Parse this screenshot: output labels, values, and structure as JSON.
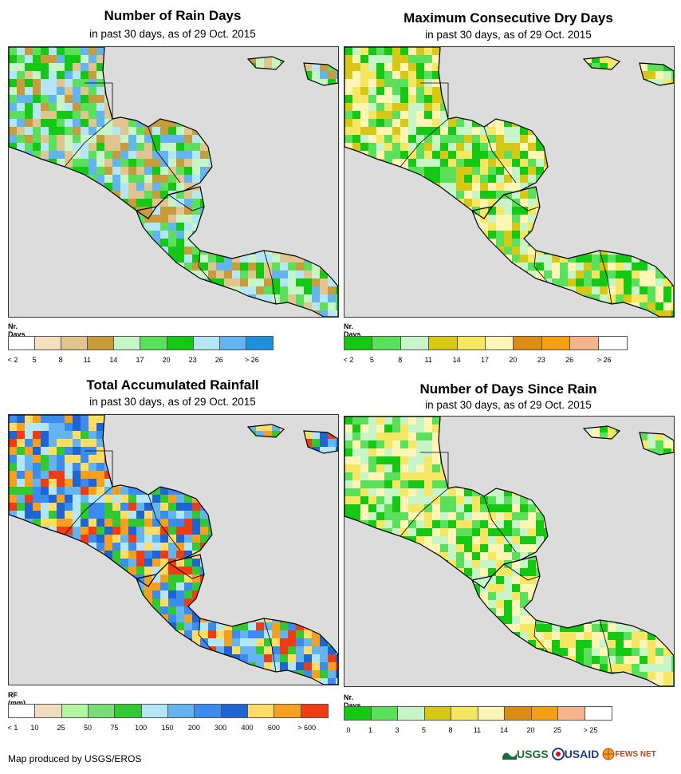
{
  "panels": [
    {
      "id": "rain-days",
      "title": "Number of Rain Days",
      "subtitle": "in past 30 days, as of 29 Oct. 2015",
      "units": "Nr. Days",
      "legend_colors": [
        "#ffffff",
        "#f5dfc0",
        "#e2c48e",
        "#c89c3c",
        "#c8f5c8",
        "#5ae05a",
        "#14c814",
        "#b4e6f5",
        "#64b4f0",
        "#1e90dc"
      ],
      "ticks": [
        "< 2",
        "5",
        "8",
        "11",
        "14",
        "17",
        "20",
        "23",
        "26",
        "> 26"
      ],
      "palette": [
        "#e2c48e",
        "#c89c3c",
        "#c8f5c8",
        "#5ae05a",
        "#14c814",
        "#b4e6f5",
        "#64b4f0"
      ]
    },
    {
      "id": "max-dry-days",
      "title": "Maximum Consecutive Dry Days",
      "subtitle": "in past 30 days, as of 29 Oct. 2015",
      "units": "Nr. Days",
      "legend_colors": [
        "#14c814",
        "#5ae05a",
        "#c8f5c8",
        "#d6c814",
        "#f5e664",
        "#fff5b4",
        "#dc8c14",
        "#f5a014",
        "#f5b48c",
        "#ffffff"
      ],
      "ticks": [
        "< 2",
        "5",
        "8",
        "11",
        "14",
        "17",
        "20",
        "23",
        "26",
        "> 26"
      ],
      "palette": [
        "#14c814",
        "#5ae05a",
        "#c8f5c8",
        "#d6c814",
        "#f5e664",
        "#fff5b4"
      ]
    },
    {
      "id": "total-rainfall",
      "title": "Total Accumulated Rainfall",
      "subtitle": "in past 30 days, as of 29 Oct. 2015",
      "units": "RF (mm)",
      "legend_colors": [
        "#ffffff",
        "#f0dcbe",
        "#b4f5a0",
        "#78dc78",
        "#32c832",
        "#b4e6f5",
        "#64b4f0",
        "#3c8cf0",
        "#1e64d2",
        "#ffdc64",
        "#f5a01e",
        "#f03c14"
      ],
      "ticks": [
        "< 1",
        "10",
        "25",
        "50",
        "75",
        "100",
        "150",
        "200",
        "300",
        "400",
        "600",
        "> 600"
      ],
      "palette": [
        "#3c8cf0",
        "#1e64d2",
        "#64b4f0",
        "#b4e6f5",
        "#ffdc64",
        "#f5a01e",
        "#f03c14",
        "#32c832"
      ]
    },
    {
      "id": "days-since-rain",
      "title": "Number of Days Since Rain",
      "subtitle": "in past 30 days, as of 29 Oct. 2015",
      "units": "Nr. Days",
      "legend_colors": [
        "#14c814",
        "#5ae05a",
        "#c8f5c8",
        "#d6c814",
        "#f5e664",
        "#fff5b4",
        "#dc8c14",
        "#f5a014",
        "#f5b48c",
        "#ffffff"
      ],
      "ticks": [
        "0",
        "1",
        "3",
        "5",
        "8",
        "11",
        "14",
        "20",
        "25",
        "> 25"
      ],
      "palette": [
        "#14c814",
        "#5ae05a",
        "#c8f5c8",
        "#f5e664",
        "#fff5b4"
      ]
    }
  ],
  "credit": "Map produced by USGS/EROS",
  "logos": [
    "USGS",
    "USAID",
    "FEWS NET"
  ]
}
